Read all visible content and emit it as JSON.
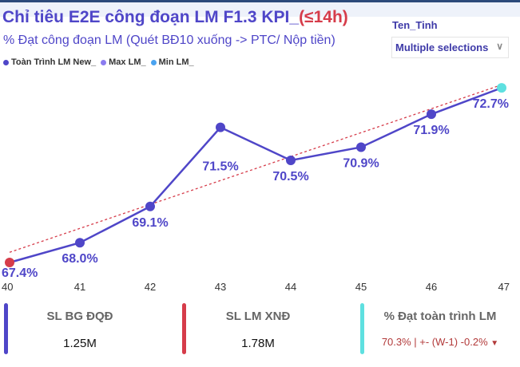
{
  "header": {
    "title_main": "Chỉ tiêu E2E công đoạn LM F1.3 KPI_",
    "title_highlight": "(≤14h)",
    "subtitle": "% Đạt công đoạn LM (Quét BĐ10 xuống -> PTC/ Nộp tiền)"
  },
  "legend": [
    {
      "label": "Toàn Trình LM New_",
      "color": "#4f46c8"
    },
    {
      "label": "Max LM_",
      "color": "#8b7cf0"
    },
    {
      "label": "Min LM_",
      "color": "#4aa3f0"
    }
  ],
  "filter": {
    "label": "Ten_Tinh",
    "value": "Multiple selections",
    "icon": "chevron-down-icon"
  },
  "chart_data": {
    "type": "line",
    "x": [
      "40",
      "41",
      "42",
      "43",
      "44",
      "45",
      "46",
      "47"
    ],
    "series": [
      {
        "name": "Toàn Trình LM New_",
        "values": [
          67.4,
          68.0,
          69.1,
          71.5,
          70.5,
          70.9,
          71.9,
          72.7
        ],
        "labels": [
          "67.4%",
          "68.0%",
          "69.1%",
          "71.5%",
          "70.5%",
          "70.9%",
          "71.9%",
          "72.7%"
        ],
        "color": "#4f46c8"
      }
    ],
    "trendline": {
      "style": "dashed",
      "color": "#d63c4a"
    },
    "min_marker_color": "#d63c4a",
    "max_marker_color": "#5ee0e0",
    "grid": false
  },
  "cards": [
    {
      "label": "SL BG ĐQĐ",
      "value": "1.25M",
      "color": "#4f46c8"
    },
    {
      "label": "SL LM XNĐ",
      "value": "1.78M",
      "color": "#d63c4a"
    },
    {
      "label": "% Đạt toàn trình LM",
      "value": "70.3% | +- (W-1) -0.2%",
      "trend": "▼",
      "color": "#5ee0e0"
    }
  ]
}
